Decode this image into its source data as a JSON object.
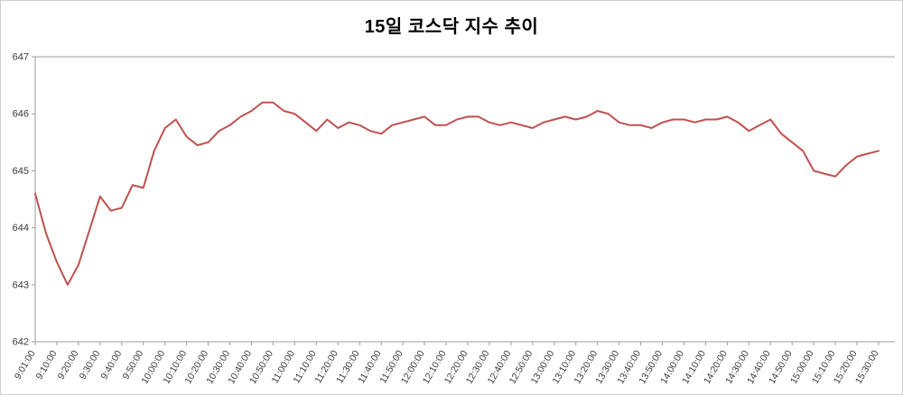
{
  "title": "15일 코스닥 지수 추이",
  "chart_data": {
    "type": "line",
    "title": "15일 코스닥 지수 추이",
    "xlabel": "",
    "ylabel": "",
    "ylim": [
      642,
      647
    ],
    "y_ticks": [
      642,
      643,
      644,
      645,
      646,
      647
    ],
    "grid": false,
    "legend": "none",
    "line_color": "#c0504d",
    "axis_color": "#9d9d9d",
    "label_color": "#3a3a3a",
    "x_tick_labels": [
      "9:01:00",
      "9:10:00",
      "9:20:00",
      "9:30:00",
      "9:40:00",
      "9:50:00",
      "10:00:00",
      "10:10:00",
      "10:20:00",
      "10:30:00",
      "10:40:00",
      "10:50:00",
      "11:00:00",
      "11:10:00",
      "11:20:00",
      "11:30:00",
      "11:40:00",
      "11:50:00",
      "12:00:00",
      "12:10:00",
      "12:20:00",
      "12:30:00",
      "12:40:00",
      "12:50:00",
      "13:00:00",
      "13:10:00",
      "13:20:00",
      "13:30:00",
      "13:40:00",
      "13:50:00",
      "14:00:00",
      "14:10:00",
      "14:20:00",
      "14:30:00",
      "14:40:00",
      "14:50:00",
      "15:00:00",
      "15:10:00",
      "15:20:00",
      "15:30:00"
    ],
    "x_tick_every": 2,
    "x": [
      "9:01",
      "9:05",
      "9:10",
      "9:15",
      "9:20",
      "9:25",
      "9:30",
      "9:35",
      "9:40",
      "9:45",
      "9:50",
      "9:55",
      "10:00",
      "10:05",
      "10:10",
      "10:15",
      "10:20",
      "10:25",
      "10:30",
      "10:35",
      "10:40",
      "10:45",
      "10:50",
      "10:55",
      "11:00",
      "11:05",
      "11:10",
      "11:15",
      "11:20",
      "11:25",
      "11:30",
      "11:35",
      "11:40",
      "11:45",
      "11:50",
      "11:55",
      "12:00",
      "12:05",
      "12:10",
      "12:15",
      "12:20",
      "12:25",
      "12:30",
      "12:35",
      "12:40",
      "12:45",
      "12:50",
      "12:55",
      "13:00",
      "13:05",
      "13:10",
      "13:15",
      "13:20",
      "13:25",
      "13:30",
      "13:35",
      "13:40",
      "13:45",
      "13:50",
      "13:55",
      "14:00",
      "14:05",
      "14:10",
      "14:15",
      "14:20",
      "14:25",
      "14:30",
      "14:35",
      "14:40",
      "14:45",
      "14:50",
      "14:55",
      "15:00",
      "15:05",
      "15:10",
      "15:15",
      "15:20",
      "15:25",
      "15:30"
    ],
    "values": [
      644.6,
      643.9,
      643.4,
      643.0,
      643.35,
      643.95,
      644.55,
      644.3,
      644.35,
      644.75,
      644.7,
      645.35,
      645.75,
      645.9,
      645.6,
      645.45,
      645.5,
      645.7,
      645.8,
      645.95,
      646.05,
      646.2,
      646.2,
      646.05,
      646.0,
      645.85,
      645.7,
      645.9,
      645.75,
      645.85,
      645.8,
      645.7,
      645.65,
      645.8,
      645.85,
      645.9,
      645.95,
      645.8,
      645.8,
      645.9,
      645.95,
      645.95,
      645.85,
      645.8,
      645.85,
      645.8,
      645.75,
      645.85,
      645.9,
      645.95,
      645.9,
      645.95,
      646.05,
      646.0,
      645.85,
      645.8,
      645.8,
      645.75,
      645.85,
      645.9,
      645.9,
      645.85,
      645.9,
      645.9,
      645.95,
      645.85,
      645.7,
      645.8,
      645.9,
      645.65,
      645.5,
      645.35,
      645.0,
      644.95,
      644.9,
      645.1,
      645.25,
      645.3,
      645.35
    ]
  }
}
